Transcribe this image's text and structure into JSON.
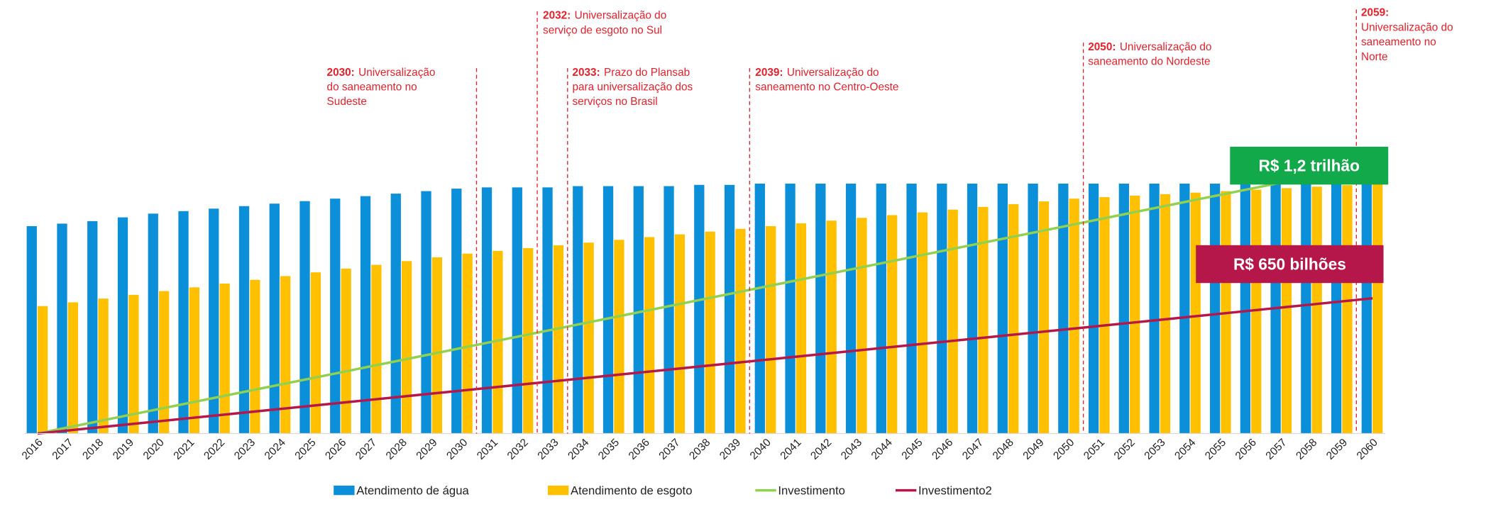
{
  "chart_data": {
    "type": "bar",
    "categories": [
      "2016",
      "2017",
      "2018",
      "2019",
      "2020",
      "2021",
      "2022",
      "2023",
      "2024",
      "2025",
      "2026",
      "2027",
      "2028",
      "2029",
      "2030",
      "2031",
      "2032",
      "2033",
      "2034",
      "2035",
      "2036",
      "2037",
      "2038",
      "2039",
      "2040",
      "2041",
      "2042",
      "2043",
      "2044",
      "2045",
      "2046",
      "2047",
      "2048",
      "2049",
      "2050",
      "2051",
      "2052",
      "2053",
      "2054",
      "2055",
      "2056",
      "2057",
      "2058",
      "2059",
      "2060"
    ],
    "series": [
      {
        "name": "Atendimento de água",
        "type": "bar",
        "color": "#0a8fd8",
        "values": [
          83,
          84,
          85,
          86.5,
          88,
          89,
          90,
          91,
          92,
          93,
          94,
          95,
          96,
          97,
          98,
          98.5,
          98.5,
          98.5,
          99,
          99,
          99,
          99,
          99.5,
          99.5,
          100,
          100,
          100,
          100,
          100,
          100,
          100,
          100,
          100,
          100,
          100,
          100,
          100,
          100,
          100,
          100,
          100,
          100,
          100,
          100,
          100
        ]
      },
      {
        "name": "Atendimento de esgoto",
        "type": "bar",
        "color": "#ffc000",
        "values": [
          51,
          52.5,
          54,
          55.5,
          57,
          58.5,
          60,
          61.5,
          63,
          64.5,
          66,
          67.5,
          69,
          70.5,
          72,
          73.1,
          74.2,
          75.3,
          76.4,
          77.5,
          78.6,
          79.7,
          80.8,
          81.9,
          83,
          84.1,
          85.2,
          86.3,
          87.4,
          88.5,
          89.6,
          90.7,
          91.8,
          92.9,
          94,
          94.6,
          95.2,
          95.8,
          96.4,
          97,
          97.6,
          98.2,
          98.8,
          99.4,
          100
        ]
      },
      {
        "name": "Investimento",
        "type": "line",
        "color": "#92d050",
        "values": [
          0,
          2.45,
          4.9,
          7.35,
          9.8,
          12.25,
          14.7,
          17.15,
          19.6,
          22.05,
          24.5,
          26.95,
          29.4,
          31.85,
          34.3,
          36.75,
          39.2,
          41.65,
          44.1,
          46.55,
          49,
          51.45,
          53.9,
          56.35,
          58.8,
          61.25,
          63.7,
          66.15,
          68.6,
          71.05,
          73.5,
          75.95,
          78.4,
          80.85,
          83.3,
          85.75,
          88.2,
          90.65,
          93.1,
          95.55,
          98,
          100.45,
          102.9,
          105.35,
          107.8
        ]
      },
      {
        "name": "Investimento2",
        "type": "line",
        "color": "#b5174a",
        "values": [
          0,
          1.23,
          2.46,
          3.69,
          4.92,
          6.15,
          7.38,
          8.61,
          9.84,
          11.07,
          12.3,
          13.53,
          14.76,
          15.99,
          17.22,
          18.45,
          19.68,
          20.91,
          22.14,
          23.37,
          24.6,
          25.83,
          27.06,
          28.29,
          29.52,
          30.75,
          31.98,
          33.21,
          34.44,
          35.67,
          36.9,
          38.13,
          39.36,
          40.59,
          41.82,
          43.05,
          44.28,
          45.51,
          46.74,
          47.97,
          49.2,
          50.43,
          51.66,
          52.89,
          54.12
        ]
      }
    ],
    "ylim": [
      0,
      110
    ],
    "annotations": [
      {
        "label": "2030:",
        "lines": [
          "Universalização",
          "do saneamento no",
          "Sudeste"
        ],
        "color": "#e8202a"
      },
      {
        "label": "2032:",
        "lines": [
          "Universalização do",
          "serviço de esgoto no Sul"
        ],
        "color": "#e8202a"
      },
      {
        "label": "2033:",
        "lines": [
          "Prazo do Plansab",
          "para universalização dos",
          "serviços no Brasil"
        ],
        "color": "#e8202a"
      },
      {
        "label": "2039:",
        "lines": [
          "Universalização do",
          "saneamento no Centro-Oeste"
        ],
        "color": "#e8202a"
      },
      {
        "label": "2050:",
        "lines": [
          "Universalização do",
          "saneamento do Nordeste"
        ],
        "color": "#e8202a"
      },
      {
        "label": "2059:",
        "lines": [
          "Universalização do",
          "saneamento no",
          "Norte"
        ],
        "color": "#e8202a"
      }
    ],
    "callouts": [
      {
        "text": "R$ 1,2 trilhão",
        "color": "#12a94a"
      },
      {
        "text": "R$ 650 bilhões",
        "color": "#b5174a"
      }
    ]
  }
}
